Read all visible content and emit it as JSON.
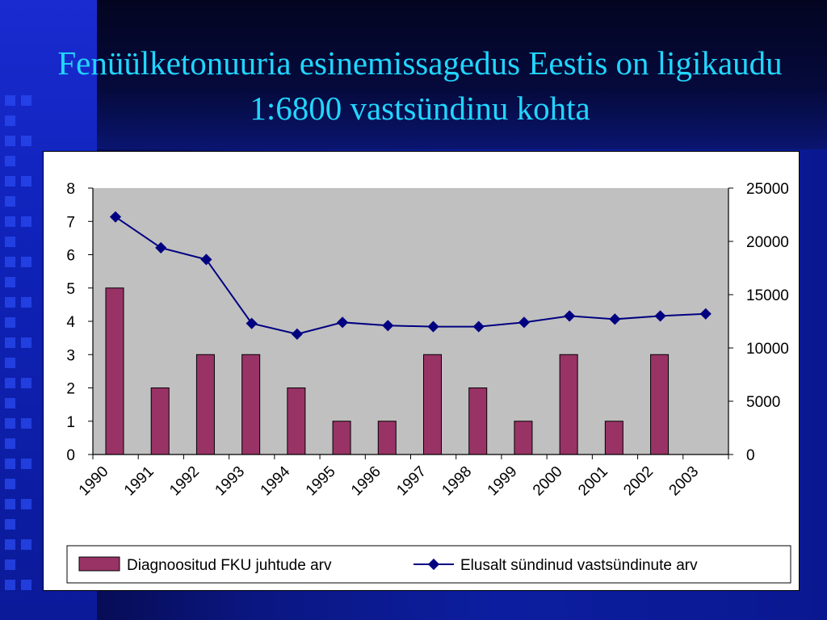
{
  "slide": {
    "title": "Fenüülketonuuria esinemissagedus Eestis on ligikaudu 1:6800 vastsündinu kohta"
  },
  "colors": {
    "title": "#21d6ff",
    "plot_bg": "#c0c0c0",
    "bar_fill": "#993366",
    "line": "#000080"
  },
  "chart_data": {
    "type": "bar",
    "categories": [
      "1990",
      "1991",
      "1992",
      "1993",
      "1994",
      "1995",
      "1996",
      "1997",
      "1998",
      "1999",
      "2000",
      "2001",
      "2002",
      "2003"
    ],
    "series": [
      {
        "name": "Diagnoositud FKU juhtude arv",
        "type": "bar",
        "axis": "left",
        "values": [
          5,
          2,
          3,
          3,
          2,
          1,
          1,
          3,
          2,
          1,
          3,
          1,
          3,
          null
        ]
      },
      {
        "name": "Elusalt sündinud vastsündinute arv",
        "type": "line",
        "axis": "right",
        "values": [
          22300,
          19400,
          18300,
          12300,
          11300,
          12400,
          12100,
          12000,
          12000,
          12400,
          13000,
          12700,
          13000,
          13200
        ]
      }
    ],
    "y_left": {
      "ylim": [
        0,
        8
      ],
      "ticks": [
        "0",
        "1",
        "2",
        "3",
        "4",
        "5",
        "6",
        "7",
        "8"
      ]
    },
    "y_right": {
      "ylim": [
        0,
        25000
      ],
      "ticks": [
        "0",
        "5000",
        "10000",
        "15000",
        "20000",
        "25000"
      ]
    },
    "grid": false,
    "legend_position": "bottom"
  }
}
